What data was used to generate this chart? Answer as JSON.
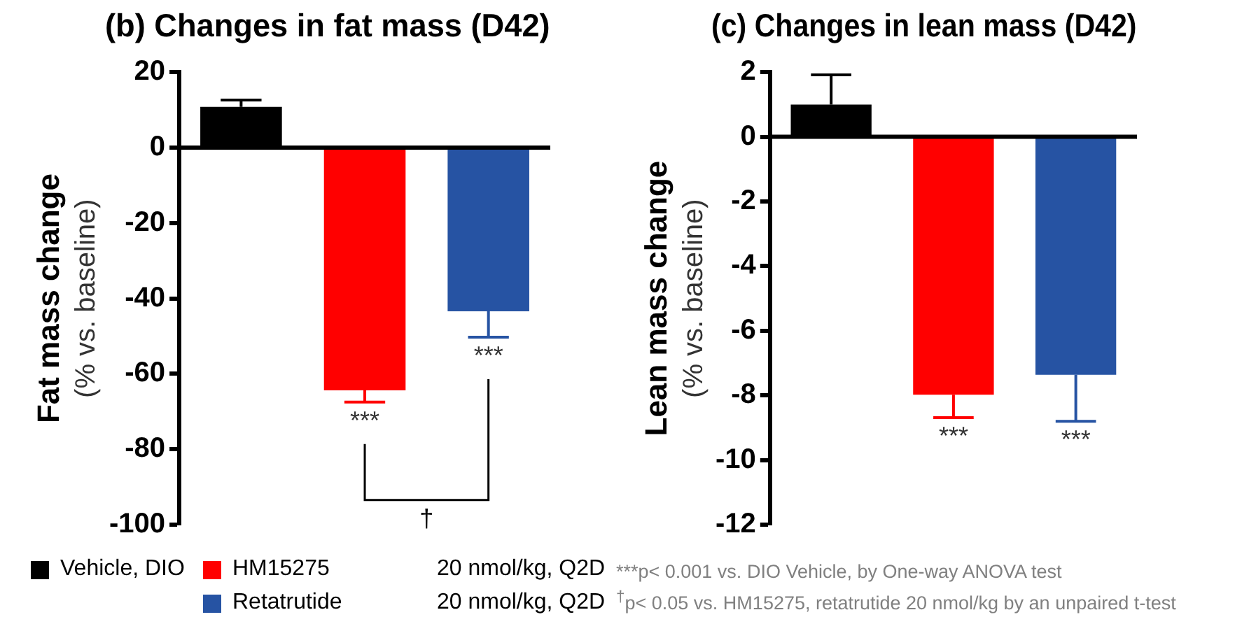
{
  "chart_data": [
    {
      "type": "bar",
      "title": "(b) Changes in fat mass (D42)",
      "ylabel": "Fat mass change\n(% vs. baseline)",
      "categories": [
        null,
        null,
        null
      ],
      "stacked": true,
      "series": [
        {
          "name": "Vehicle, DIO",
          "color": "#000000",
          "values": [
            10.8,
            null,
            null
          ],
          "errors": [
            [
              10.8,
              12.6
            ],
            null,
            null
          ]
        },
        {
          "name": "HM15275",
          "color": "#ff0000",
          "values": [
            null,
            -64.4,
            null
          ],
          "errors": [
            null,
            [
              -67.5,
              -64.4
            ],
            null
          ]
        },
        {
          "name": "Retatrutide",
          "color": "#2653a3",
          "values": [
            null,
            null,
            -43.4
          ],
          "errors": [
            null,
            null,
            [
              -50.3,
              -43.4
            ]
          ]
        }
      ],
      "ylim": [
        -100,
        20
      ],
      "yticks": [
        -100,
        -80,
        -60,
        -40,
        -20,
        0,
        20
      ],
      "legend": "bottom",
      "annotations": [
        "***",
        "***",
        "†",
        "20 nmol/kg, Q2D",
        "20 nmol/kg, Q2D",
        "***p< 0.001 vs. DIO Vehicle, by One-way ANOVA test",
        "$^{†}$p< 0.05 vs. HM15275, retatrutide 20 nmol/kg by an unpaired t-test"
      ]
    },
    {
      "type": "bar",
      "title": "(c) Changes in lean mass (D42)",
      "ylabel": "Lean mass change\n(% vs. baseline)",
      "categories": [
        null,
        null,
        null
      ],
      "stacked": true,
      "series": [
        {
          "color": "#000000",
          "values": [
            1.0,
            null,
            null
          ],
          "errors": [
            [
              1.0,
              1.92
            ],
            null,
            null
          ]
        },
        {
          "color": "#ff0000",
          "values": [
            null,
            -7.98,
            null
          ],
          "errors": [
            null,
            [
              -8.69,
              -7.98
            ],
            null
          ]
        },
        {
          "color": "#2653a3",
          "values": [
            null,
            null,
            -7.36
          ],
          "errors": [
            null,
            null,
            [
              -8.8,
              -7.36
            ]
          ]
        }
      ],
      "ylim": [
        -12,
        2
      ],
      "yticks": [
        -12,
        -10,
        -8,
        -6,
        -4,
        -2,
        0,
        2
      ],
      "legend": false,
      "annotations": [
        "***",
        "***"
      ]
    }
  ]
}
